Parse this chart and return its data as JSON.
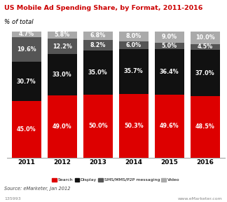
{
  "title": "US Mobile Ad Spending Share, by Format, 2011-2016",
  "subtitle": "% of total",
  "years": [
    "2011",
    "2012",
    "2013",
    "2014",
    "2015",
    "2016"
  ],
  "search": [
    45.0,
    49.0,
    50.0,
    50.3,
    49.6,
    48.5
  ],
  "display": [
    30.7,
    33.0,
    35.0,
    35.7,
    36.4,
    37.0
  ],
  "sms": [
    19.6,
    12.2,
    8.2,
    6.0,
    5.0,
    4.5
  ],
  "video": [
    4.7,
    5.8,
    6.8,
    8.0,
    9.0,
    10.0
  ],
  "colors": {
    "search": "#dd0000",
    "display": "#111111",
    "sms": "#555555",
    "video": "#aaaaaa"
  },
  "title_color": "#cc0000",
  "legend_labels": [
    "Search",
    "Display",
    "SMS/MMS/P2P messaging",
    "Video"
  ],
  "source": "Source: eMarketer, Jan 2012",
  "watermark": "www.eMarketer.com",
  "id": "135993",
  "ylim": [
    0,
    100
  ],
  "bar_width": 0.82
}
